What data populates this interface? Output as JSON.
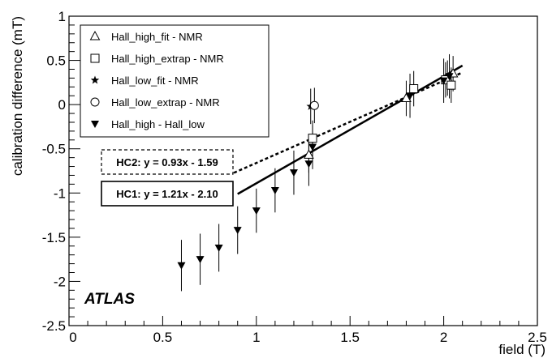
{
  "chart_data": {
    "type": "scatter",
    "title": "",
    "xlabel": "field (T)",
    "ylabel": "calibration difference (mT)",
    "xlim": [
      0,
      2.5
    ],
    "ylim": [
      -2.5,
      1
    ],
    "xticks": [
      0,
      0.5,
      1,
      1.5,
      2,
      2.5
    ],
    "yticks": [
      -2.5,
      -2,
      -1.5,
      -1,
      -0.5,
      0,
      0.5,
      1
    ],
    "xtick_labels": [
      "0",
      "0.5",
      "1",
      "1.5",
      "2",
      "2.5"
    ],
    "ytick_labels": [
      "-2.5",
      "-2",
      "-1.5",
      "-1",
      "-0.5",
      "0",
      "0.5",
      "1"
    ],
    "grid": false,
    "legend_position": "top-left",
    "series": [
      {
        "name": "Hall_high_fit - NMR",
        "marker": "triangle-open",
        "points": [
          {
            "x": 1.28,
            "y": -0.57,
            "err": 0.2
          },
          {
            "x": 1.8,
            "y": 0.07,
            "err": 0.2
          },
          {
            "x": 2.02,
            "y": 0.3,
            "err": 0.2
          },
          {
            "x": 2.05,
            "y": 0.35,
            "err": 0.2
          }
        ]
      },
      {
        "name": "Hall_high_extrap - NMR",
        "marker": "square-open",
        "points": [
          {
            "x": 1.3,
            "y": -0.38,
            "err": 0.2
          },
          {
            "x": 1.84,
            "y": 0.18,
            "err": 0.2
          },
          {
            "x": 2.01,
            "y": 0.28,
            "err": 0.2
          },
          {
            "x": 2.04,
            "y": 0.22,
            "err": 0.2
          }
        ]
      },
      {
        "name": "Hall_low_fit - NMR",
        "marker": "star",
        "points": [
          {
            "x": 1.29,
            "y": -0.02,
            "err": 0.2
          }
        ]
      },
      {
        "name": "Hall_low_extrap - NMR",
        "marker": "circle-open",
        "points": [
          {
            "x": 1.31,
            "y": -0.01,
            "err": 0.2
          }
        ]
      },
      {
        "name": "Hall_high - Hall_low",
        "marker": "triangle-down-filled",
        "points": [
          {
            "x": 0.6,
            "y": -1.82,
            "err": 0.29
          },
          {
            "x": 0.7,
            "y": -1.75,
            "err": 0.29
          },
          {
            "x": 0.8,
            "y": -1.62,
            "err": 0.27
          },
          {
            "x": 0.9,
            "y": -1.42,
            "err": 0.27
          },
          {
            "x": 1.0,
            "y": -1.2,
            "err": 0.25
          },
          {
            "x": 1.1,
            "y": -0.97,
            "err": 0.25
          },
          {
            "x": 1.2,
            "y": -0.77,
            "err": 0.25
          },
          {
            "x": 1.28,
            "y": -0.67,
            "err": 0.25
          },
          {
            "x": 1.3,
            "y": -0.48,
            "err": 0.25
          },
          {
            "x": 1.82,
            "y": 0.1,
            "err": 0.25
          },
          {
            "x": 2.0,
            "y": 0.27,
            "err": 0.25
          },
          {
            "x": 2.03,
            "y": 0.32,
            "err": 0.25
          }
        ]
      }
    ],
    "fit_lines": [
      {
        "label": "HC1: y = 1.21x - 2.10",
        "slope": 1.21,
        "intercept": -2.1,
        "x_range": [
          0.9,
          2.1
        ],
        "style": "solid"
      },
      {
        "label": "HC2: y = 0.93x - 1.59",
        "slope": 0.93,
        "intercept": -1.59,
        "x_range": [
          0.88,
          2.1
        ],
        "style": "dashed"
      }
    ],
    "annotations": [
      "ATLAS"
    ]
  }
}
